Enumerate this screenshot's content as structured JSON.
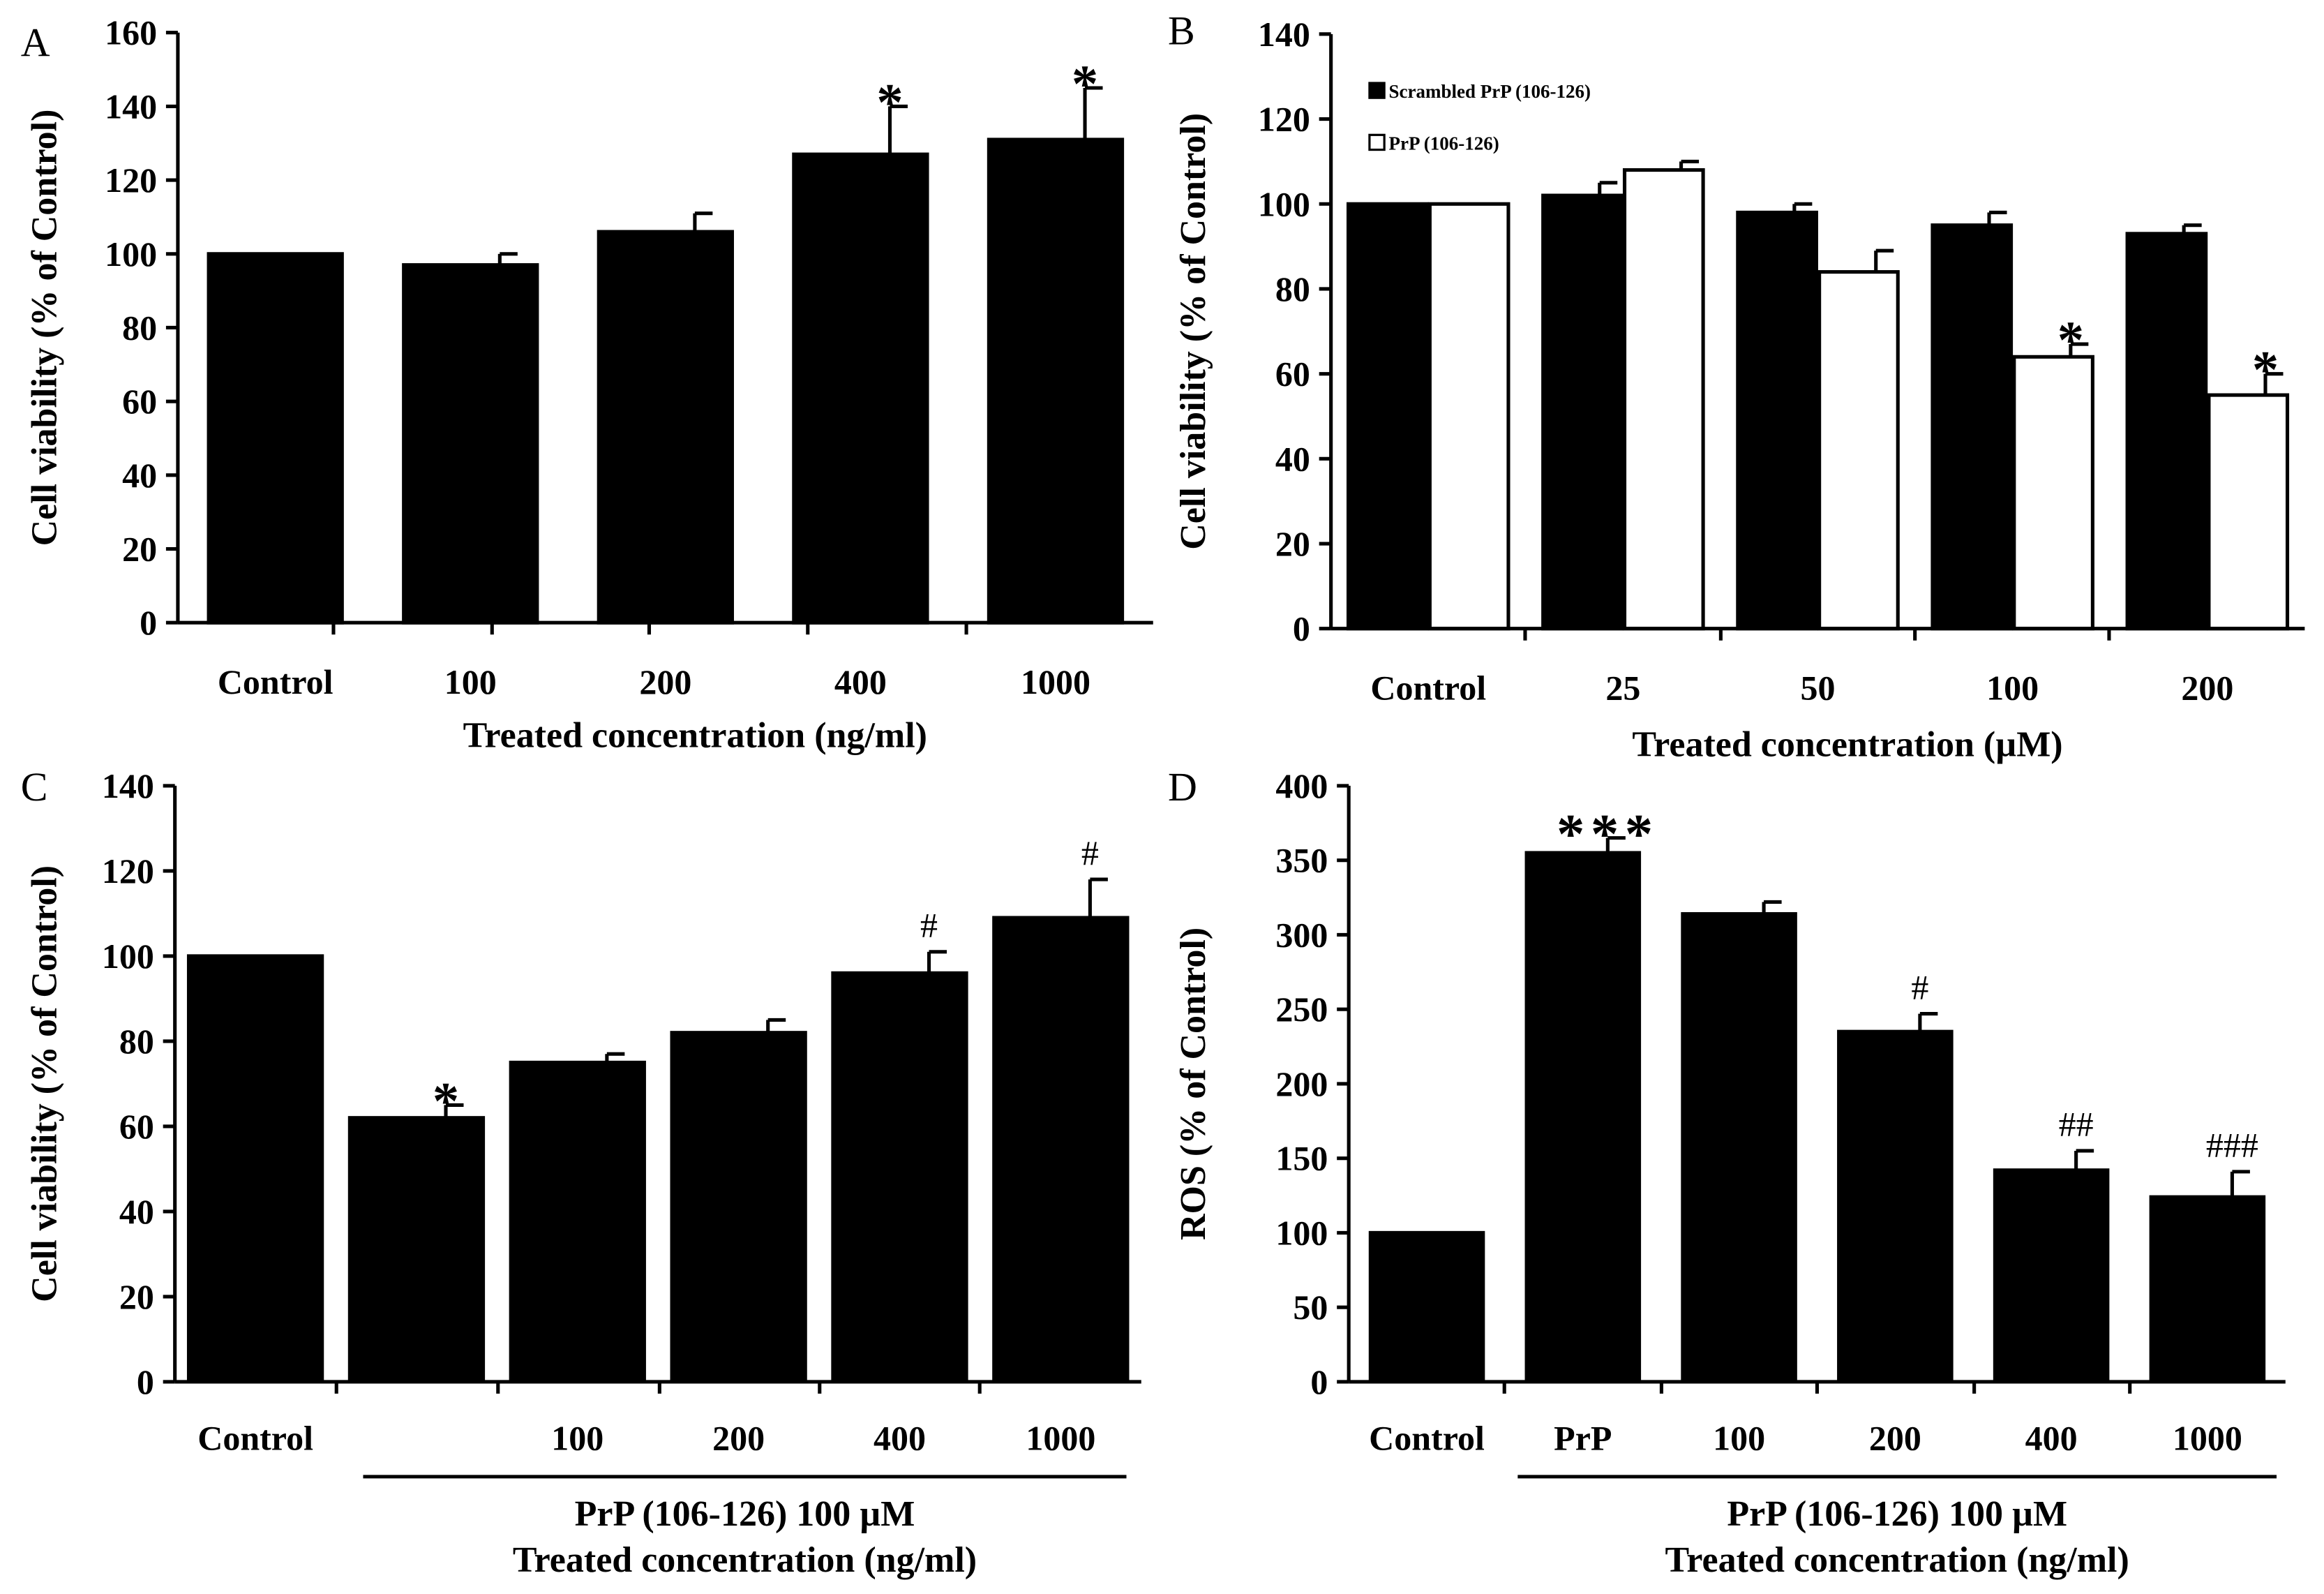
{
  "colors": {
    "black_bar": "#000000",
    "white_bar": "#ffffff",
    "axis": "#000000"
  },
  "chart_data": [
    {
      "panel": "A",
      "type": "bar",
      "categories": [
        "Control",
        "100",
        "200",
        "400",
        "1000"
      ],
      "series": [
        {
          "name": "",
          "values": [
            100,
            97,
            106,
            127,
            131
          ],
          "errors": [
            0,
            3,
            5,
            13,
            14
          ],
          "color": "#000000"
        }
      ],
      "annotations": [
        "",
        "",
        "",
        "*",
        "*"
      ],
      "xlabel": "Treated concentration (ng/ml)",
      "ylabel": "Cell viability (% of Control)",
      "ylim": [
        0,
        160
      ],
      "yticks": [
        0,
        20,
        40,
        60,
        80,
        100,
        120,
        140,
        160
      ],
      "ytick_labels": [
        "0",
        "20",
        "40",
        "60",
        "80",
        "100",
        "120",
        "140",
        "160"
      ]
    },
    {
      "panel": "B",
      "type": "bar",
      "categories": [
        "Control",
        "25",
        "50",
        "100",
        "200"
      ],
      "series": [
        {
          "name": "Scrambled PrP (106-126)",
          "values": [
            100,
            102,
            98,
            95,
            93
          ],
          "errors": [
            0,
            3,
            2,
            3,
            2
          ],
          "color": "#000000"
        },
        {
          "name": "PrP (106-126)",
          "values": [
            100,
            108,
            84,
            64,
            55
          ],
          "errors": [
            0,
            2,
            5,
            3,
            5
          ],
          "color": "#ffffff"
        }
      ],
      "annotations": [
        [
          "",
          "",
          "",
          "",
          ""
        ],
        [
          "",
          "",
          "",
          "*",
          "*"
        ]
      ],
      "legend": [
        "Scrambled PrP (106-126)",
        "PrP (106-126)"
      ],
      "legend_position": "top-left",
      "xlabel": "Treated concentration (µM)",
      "ylabel": "Cell viability (% of Control)",
      "ylim": [
        0,
        140
      ],
      "yticks": [
        0,
        20,
        40,
        60,
        80,
        100,
        120,
        140
      ],
      "ytick_labels": [
        "0",
        "20",
        "40",
        "60",
        "80",
        "100",
        "120",
        "140"
      ]
    },
    {
      "panel": "C",
      "type": "bar",
      "categories": [
        "Control",
        "",
        "100",
        "200",
        "400",
        "1000"
      ],
      "series": [
        {
          "name": "",
          "values": [
            100,
            62,
            75,
            82,
            96,
            109
          ],
          "errors": [
            0,
            3,
            2,
            3,
            5,
            9
          ],
          "color": "#000000"
        }
      ],
      "annotations": [
        "",
        "*",
        "",
        "",
        "#",
        "#"
      ],
      "group_label": "PrP (106-126) 100 µM",
      "xlabel": "Treated concentration (ng/ml)",
      "ylabel": "Cell viability (% of Control)",
      "ylim": [
        0,
        140
      ],
      "yticks": [
        0,
        20,
        40,
        60,
        80,
        100,
        120,
        140
      ],
      "ytick_labels": [
        "0",
        "20",
        "40",
        "60",
        "80",
        "100",
        "120",
        "140"
      ]
    },
    {
      "panel": "D",
      "type": "bar",
      "categories": [
        "Control",
        "PrP",
        "100",
        "200",
        "400",
        "1000"
      ],
      "series": [
        {
          "name": "",
          "values": [
            100,
            355,
            314,
            235,
            142,
            124
          ],
          "errors": [
            0,
            10,
            8,
            12,
            13,
            17
          ],
          "color": "#000000"
        }
      ],
      "annotations": [
        "",
        "***",
        "",
        "#",
        "##",
        "###"
      ],
      "group_label": "PrP (106-126) 100 µM",
      "xlabel": "Treated concentration (ng/ml)",
      "ylabel": "ROS (% of Control)",
      "ylim": [
        0,
        400
      ],
      "yticks": [
        0,
        50,
        100,
        150,
        200,
        250,
        300,
        350,
        400
      ],
      "ytick_labels": [
        "0",
        "50",
        "100",
        "150",
        "200",
        "250",
        "300",
        "350",
        "400"
      ]
    }
  ]
}
